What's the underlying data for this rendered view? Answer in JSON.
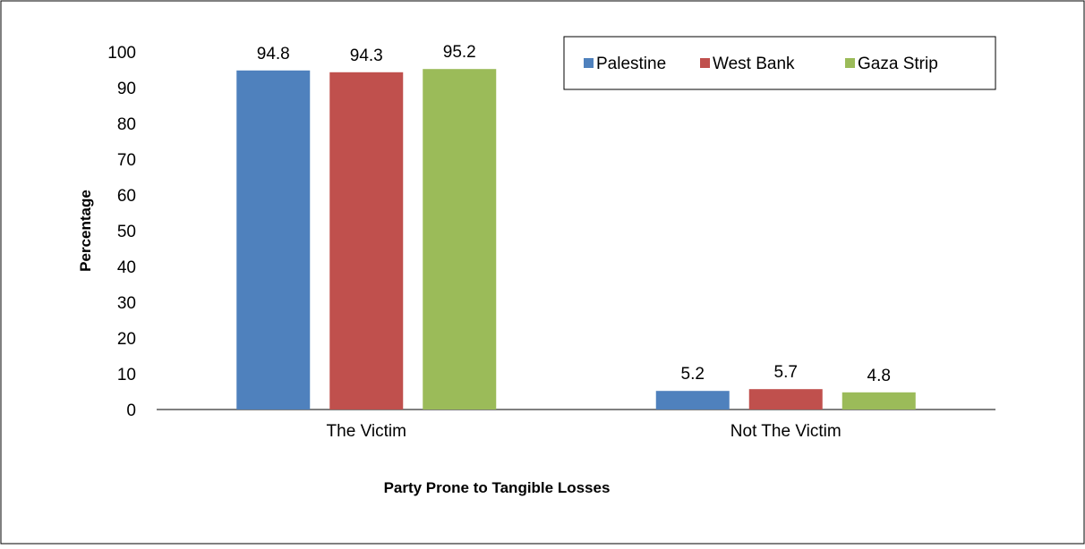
{
  "chart_data": {
    "type": "bar",
    "title": "",
    "xlabel": "Party Prone to Tangible Losses",
    "ylabel": "Percentage",
    "categories": [
      "The Victim",
      "Not The Victim"
    ],
    "series": [
      {
        "name": "Palestine",
        "values": [
          94.8,
          5.2
        ],
        "color": "#4F81BD"
      },
      {
        "name": "West Bank",
        "values": [
          94.3,
          5.7
        ],
        "color": "#C0504D"
      },
      {
        "name": "Gaza Strip",
        "values": [
          95.2,
          4.8
        ],
        "color": "#9BBB59"
      }
    ],
    "ylim": [
      0,
      100
    ],
    "yticks": [
      0,
      10,
      20,
      30,
      40,
      50,
      60,
      70,
      80,
      90,
      100
    ],
    "grid": false,
    "legend_position": "top-right",
    "data_labels": true
  }
}
